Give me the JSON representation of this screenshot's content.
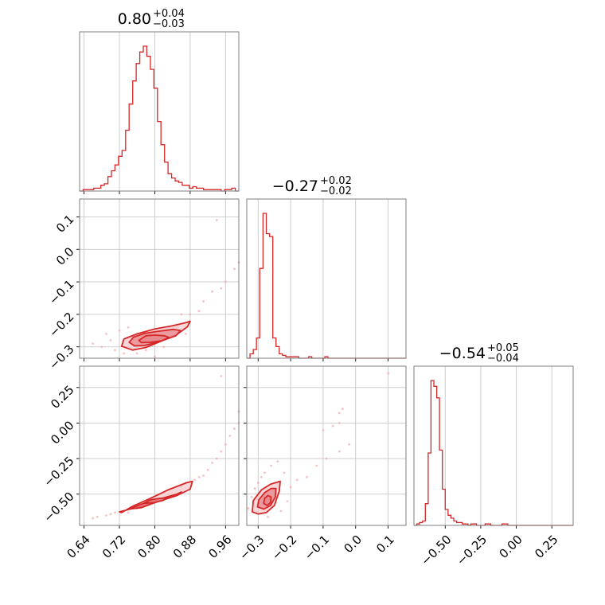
{
  "colors": {
    "accent": "#d62728",
    "fill_dark": "#e8868a",
    "fill_light": "#f6c9cb",
    "points": "#f4a8ab"
  },
  "chart_data": {
    "type": "corner",
    "parameters": [
      {
        "title": "0.80",
        "err_plus": "+0.04",
        "err_minus": "−0.03",
        "range": [
          0.63,
          0.99
        ],
        "median": 0.8,
        "ticks": [
          0.64,
          0.72,
          0.8,
          0.88,
          0.96
        ],
        "tick_labels": [
          "0.64",
          "0.72",
          "0.80",
          "0.88",
          "0.96"
        ],
        "histogram": {
          "bin_edges": [
            0.63,
            0.638,
            0.646,
            0.654,
            0.662,
            0.67,
            0.678,
            0.686,
            0.694,
            0.702,
            0.71,
            0.718,
            0.726,
            0.734,
            0.742,
            0.75,
            0.758,
            0.766,
            0.774,
            0.782,
            0.79,
            0.798,
            0.806,
            0.814,
            0.822,
            0.83,
            0.838,
            0.846,
            0.854,
            0.862,
            0.87,
            0.878,
            0.886,
            0.894,
            0.902,
            0.91,
            0.918,
            0.926,
            0.934,
            0.942,
            0.95,
            0.958,
            0.966,
            0.974,
            0.982,
            0.99
          ],
          "counts": [
            0,
            1,
            1,
            1,
            2,
            2,
            4,
            5,
            10,
            14,
            18,
            24,
            28,
            42,
            60,
            76,
            88,
            96,
            100,
            93,
            84,
            71,
            48,
            32,
            20,
            12,
            9,
            7,
            6,
            4,
            4,
            2,
            3,
            2,
            2,
            1,
            1,
            1,
            1,
            1,
            0,
            1,
            1,
            2,
            0
          ]
        }
      },
      {
        "title": "−0.27",
        "err_plus": "+0.02",
        "err_minus": "−0.02",
        "range": [
          -0.335,
          0.155
        ],
        "median": -0.27,
        "ticks": [
          -0.3,
          -0.2,
          -0.1,
          0.0,
          0.1
        ],
        "tick_labels": [
          "−0.3",
          "−0.2",
          "−0.1",
          "0.0",
          "0.1"
        ],
        "histogram": {
          "bin_edges": [
            -0.335,
            -0.325,
            -0.315,
            -0.305,
            -0.295,
            -0.285,
            -0.275,
            -0.265,
            -0.255,
            -0.245,
            -0.235,
            -0.225,
            -0.215,
            -0.205,
            -0.195,
            -0.185,
            -0.175,
            -0.165,
            -0.155,
            -0.145,
            -0.135,
            -0.125,
            -0.115,
            -0.105,
            -0.095,
            -0.085,
            -0.075,
            -0.065,
            -0.055,
            -0.045,
            -0.035,
            -0.025,
            -0.015,
            -0.005,
            0.005,
            0.015,
            0.025,
            0.035,
            0.045,
            0.055,
            0.065,
            0.075,
            0.085,
            0.095,
            0.105,
            0.115,
            0.125,
            0.135,
            0.145,
            0.155
          ],
          "counts": [
            0,
            3,
            6,
            14,
            62,
            100,
            86,
            84,
            14,
            8,
            3,
            2,
            1,
            1,
            1,
            1,
            0,
            0,
            0,
            1,
            0,
            0,
            0,
            0,
            1,
            0,
            0,
            0,
            0,
            0,
            0,
            0,
            0,
            0,
            0,
            0,
            0,
            0,
            0,
            0,
            0,
            0,
            0,
            0,
            0,
            0,
            0,
            0,
            0
          ]
        }
      },
      {
        "title": "−0.54",
        "err_plus": "+0.05",
        "err_minus": "−0.04",
        "range": [
          -0.72,
          0.4
        ],
        "median": -0.54,
        "ticks": [
          -0.5,
          -0.25,
          0.0,
          0.25
        ],
        "tick_labels": [
          "−0.50",
          "−0.25",
          "0.00",
          "0.25"
        ],
        "histogram": {
          "bin_edges": [
            -0.72,
            -0.7,
            -0.68,
            -0.66,
            -0.64,
            -0.62,
            -0.6,
            -0.58,
            -0.56,
            -0.54,
            -0.52,
            -0.5,
            -0.48,
            -0.46,
            -0.44,
            -0.42,
            -0.4,
            -0.38,
            -0.36,
            -0.34,
            -0.32,
            -0.3,
            -0.28,
            -0.26,
            -0.24,
            -0.22,
            -0.2,
            -0.18,
            -0.16,
            -0.14,
            -0.12,
            -0.1,
            -0.08,
            -0.06,
            -0.04,
            -0.02,
            0.0,
            0.02,
            0.04,
            0.06,
            0.08,
            0.1,
            0.12,
            0.14,
            0.16,
            0.18,
            0.2,
            0.22,
            0.24,
            0.26,
            0.28,
            0.3,
            0.32,
            0.34,
            0.36,
            0.38,
            0.4
          ],
          "counts": [
            0,
            1,
            2,
            3,
            15,
            50,
            100,
            96,
            88,
            52,
            25,
            11,
            7,
            5,
            3,
            2,
            2,
            1,
            1,
            0,
            1,
            1,
            0,
            0,
            0,
            1,
            1,
            0,
            0,
            0,
            0,
            1,
            1,
            0,
            0,
            0,
            0,
            0,
            0,
            0,
            0,
            0,
            0,
            0,
            0,
            0,
            0,
            0,
            0,
            0,
            0,
            0,
            0,
            0,
            0,
            0
          ]
        }
      }
    ],
    "pairs": [
      {
        "x_param": 0,
        "y_param": 1,
        "contour_levels": [
          {
            "name": "inner",
            "points": [
              [
                0.764,
                -0.28
              ],
              [
                0.78,
                -0.266
              ],
              [
                0.8,
                -0.264
              ],
              [
                0.822,
                -0.266
              ],
              [
                0.832,
                -0.271
              ],
              [
                0.816,
                -0.281
              ],
              [
                0.79,
                -0.286
              ],
              [
                0.77,
                -0.287
              ]
            ]
          },
          {
            "name": "middle",
            "points": [
              [
                0.742,
                -0.286
              ],
              [
                0.752,
                -0.27
              ],
              [
                0.778,
                -0.258
              ],
              [
                0.808,
                -0.252
              ],
              [
                0.842,
                -0.246
              ],
              [
                0.858,
                -0.25
              ],
              [
                0.848,
                -0.266
              ],
              [
                0.81,
                -0.284
              ],
              [
                0.776,
                -0.296
              ],
              [
                0.754,
                -0.297
              ]
            ]
          },
          {
            "name": "outer",
            "points": [
              [
                0.725,
                -0.298
              ],
              [
                0.73,
                -0.276
              ],
              [
                0.76,
                -0.26
              ],
              [
                0.8,
                -0.245
              ],
              [
                0.84,
                -0.235
              ],
              [
                0.872,
                -0.225
              ],
              [
                0.88,
                -0.221
              ],
              [
                0.874,
                -0.238
              ],
              [
                0.85,
                -0.262
              ],
              [
                0.81,
                -0.285
              ],
              [
                0.78,
                -0.302
              ],
              [
                0.75,
                -0.31
              ]
            ]
          }
        ],
        "scatter": [
          [
            0.66,
            -0.29
          ],
          [
            0.68,
            -0.3
          ],
          [
            0.7,
            -0.28
          ],
          [
            0.71,
            -0.31
          ],
          [
            0.69,
            -0.26
          ],
          [
            0.73,
            -0.32
          ],
          [
            0.72,
            -0.25
          ],
          [
            0.74,
            -0.24
          ],
          [
            0.86,
            -0.2
          ],
          [
            0.88,
            -0.2
          ],
          [
            0.9,
            -0.19
          ],
          [
            0.91,
            -0.16
          ],
          [
            0.93,
            -0.13
          ],
          [
            0.95,
            -0.12
          ],
          [
            0.96,
            -0.1
          ],
          [
            0.98,
            -0.06
          ],
          [
            0.99,
            -0.04
          ],
          [
            0.94,
            0.09
          ],
          [
            0.78,
            -0.31
          ],
          [
            0.82,
            -0.3
          ],
          [
            0.85,
            -0.24
          ],
          [
            0.87,
            -0.26
          ],
          [
            0.76,
            -0.32
          ],
          [
            0.8,
            -0.33
          ]
        ]
      },
      {
        "x_param": 0,
        "y_param": 2,
        "contour_levels": [
          {
            "name": "inner",
            "points": [
              [
                0.775,
                -0.565
              ],
              [
                0.79,
                -0.54
              ],
              [
                0.81,
                -0.53
              ],
              [
                0.83,
                -0.525
              ],
              [
                0.818,
                -0.545
              ],
              [
                0.798,
                -0.56
              ]
            ]
          },
          {
            "name": "middle",
            "points": [
              [
                0.742,
                -0.605
              ],
              [
                0.77,
                -0.57
              ],
              [
                0.81,
                -0.535
              ],
              [
                0.85,
                -0.5
              ],
              [
                0.86,
                -0.485
              ],
              [
                0.84,
                -0.515
              ],
              [
                0.8,
                -0.56
              ],
              [
                0.77,
                -0.595
              ]
            ]
          },
          {
            "name": "outer",
            "points": [
              [
                0.72,
                -0.625
              ],
              [
                0.75,
                -0.6
              ],
              [
                0.8,
                -0.56
              ],
              [
                0.85,
                -0.51
              ],
              [
                0.88,
                -0.465
              ],
              [
                0.885,
                -0.41
              ],
              [
                0.872,
                -0.42
              ],
              [
                0.83,
                -0.47
              ],
              [
                0.79,
                -0.53
              ],
              [
                0.75,
                -0.585
              ],
              [
                0.725,
                -0.63
              ]
            ]
          }
        ],
        "scatter": [
          [
            0.67,
            -0.66
          ],
          [
            0.69,
            -0.65
          ],
          [
            0.7,
            -0.64
          ],
          [
            0.71,
            -0.63
          ],
          [
            0.66,
            -0.67
          ],
          [
            0.89,
            -0.4
          ],
          [
            0.91,
            -0.37
          ],
          [
            0.92,
            -0.33
          ],
          [
            0.93,
            -0.28
          ],
          [
            0.94,
            -0.25
          ],
          [
            0.95,
            -0.2
          ],
          [
            0.96,
            -0.15
          ],
          [
            0.97,
            -0.09
          ],
          [
            0.98,
            -0.04
          ],
          [
            0.99,
            0.0
          ],
          [
            0.99,
            0.08
          ],
          [
            0.95,
            0.33
          ],
          [
            0.76,
            -0.6
          ],
          [
            0.83,
            -0.5
          ],
          [
            0.86,
            -0.45
          ],
          [
            0.74,
            -0.63
          ],
          [
            0.9,
            -0.38
          ]
        ]
      },
      {
        "x_param": 1,
        "y_param": 2,
        "contour_levels": [
          {
            "name": "inner",
            "points": [
              [
                -0.283,
                -0.565
              ],
              [
                -0.28,
                -0.53
              ],
              [
                -0.27,
                -0.51
              ],
              [
                -0.26,
                -0.52
              ],
              [
                -0.262,
                -0.56
              ],
              [
                -0.272,
                -0.58
              ]
            ]
          },
          {
            "name": "middle",
            "points": [
              [
                -0.302,
                -0.59
              ],
              [
                -0.298,
                -0.54
              ],
              [
                -0.28,
                -0.49
              ],
              [
                -0.26,
                -0.46
              ],
              [
                -0.245,
                -0.46
              ],
              [
                -0.247,
                -0.52
              ],
              [
                -0.262,
                -0.58
              ],
              [
                -0.282,
                -0.605
              ]
            ]
          },
          {
            "name": "outer",
            "points": [
              [
                -0.318,
                -0.625
              ],
              [
                -0.315,
                -0.545
              ],
              [
                -0.29,
                -0.47
              ],
              [
                -0.262,
                -0.43
              ],
              [
                -0.232,
                -0.41
              ],
              [
                -0.235,
                -0.48
              ],
              [
                -0.25,
                -0.58
              ],
              [
                -0.275,
                -0.63
              ],
              [
                -0.3,
                -0.64
              ]
            ]
          }
        ],
        "scatter": [
          [
            -0.33,
            -0.6
          ],
          [
            -0.32,
            -0.52
          ],
          [
            -0.31,
            -0.46
          ],
          [
            -0.3,
            -0.42
          ],
          [
            -0.29,
            -0.38
          ],
          [
            -0.28,
            -0.35
          ],
          [
            -0.26,
            -0.3
          ],
          [
            -0.24,
            -0.27
          ],
          [
            -0.22,
            -0.35
          ],
          [
            -0.2,
            -0.45
          ],
          [
            -0.18,
            -0.4
          ],
          [
            -0.15,
            -0.38
          ],
          [
            -0.12,
            -0.3
          ],
          [
            -0.09,
            -0.25
          ],
          [
            -0.05,
            -0.2
          ],
          [
            -0.02,
            -0.15
          ],
          [
            -0.1,
            -0.05
          ],
          [
            -0.07,
            -0.02
          ],
          [
            -0.05,
            0.0
          ],
          [
            -0.04,
            0.1
          ],
          [
            -0.05,
            0.07
          ],
          [
            0.1,
            0.35
          ],
          [
            -0.25,
            -0.5
          ],
          [
            -0.21,
            -0.55
          ],
          [
            -0.27,
            -0.66
          ],
          [
            -0.23,
            -0.62
          ]
        ]
      }
    ]
  }
}
